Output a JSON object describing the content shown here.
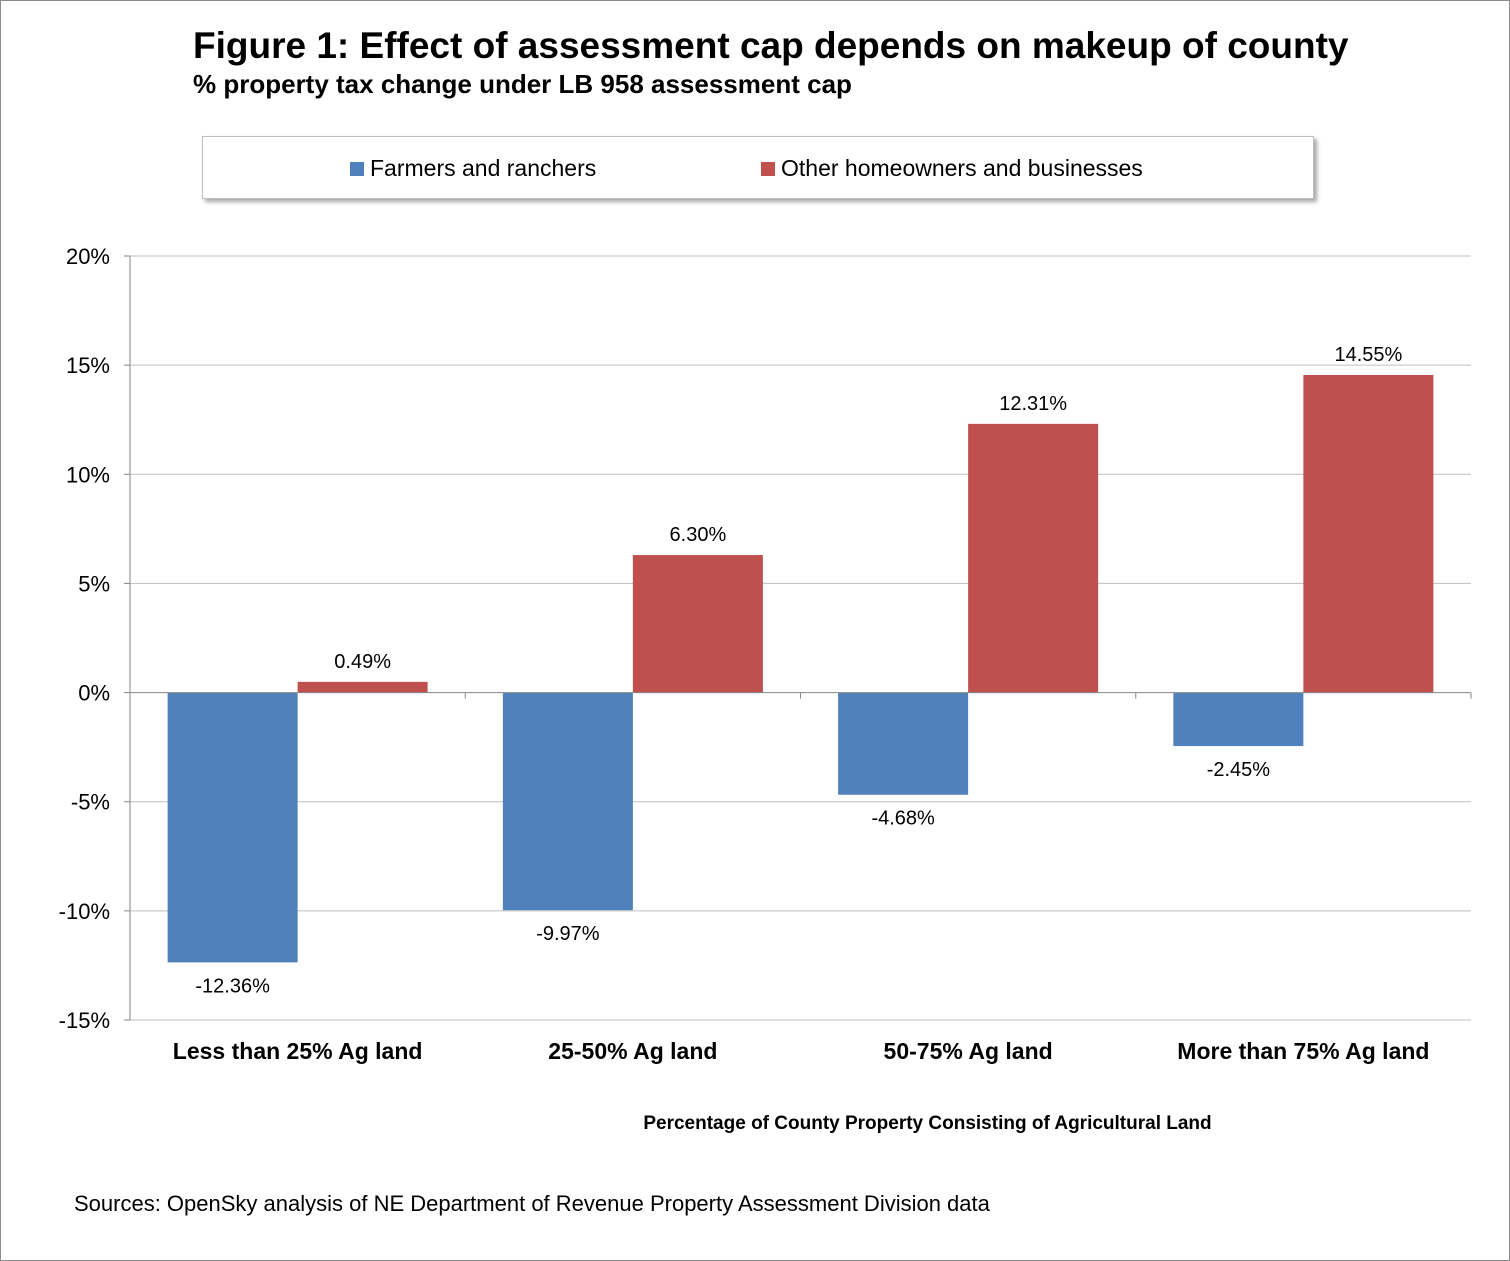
{
  "chart_data": {
    "type": "bar",
    "title": "Figure 1: Effect of assessment cap depends on makeup of county",
    "subtitle": "% property tax change under LB 958 assessment cap",
    "xlabel": "Percentage of County Property Consisting of Agricultural Land",
    "ylabel": "",
    "categories": [
      "Less than 25%  Ag land",
      "25-50%  Ag land",
      "50-75%  Ag land",
      "More than 75%  Ag land"
    ],
    "series": [
      {
        "name": "Farmers and ranchers",
        "color": "#4f81bd",
        "values": [
          -12.36,
          -9.97,
          -4.68,
          -2.45
        ],
        "labels": [
          "-12.36%",
          "-9.97%",
          "-4.68%",
          "-2.45%"
        ]
      },
      {
        "name": "Other homeowners and businesses",
        "color": "#c0504d",
        "values": [
          0.49,
          6.3,
          12.31,
          14.55
        ],
        "labels": [
          "0.49%",
          "6.30%",
          "12.31%",
          "14.55%"
        ]
      }
    ],
    "ylim": [
      -15,
      20
    ],
    "yticks": [
      20,
      15,
      10,
      5,
      0,
      -5,
      -10,
      -15
    ],
    "ytick_labels": [
      "20%",
      "15%",
      "10%",
      "5%",
      "0%",
      "-5%",
      "-10%",
      "-15%"
    ],
    "grid": true,
    "legend_position": "top"
  },
  "footer": {
    "source": "Sources: OpenSky analysis of NE Department of Revenue Property Assessment Division data"
  }
}
